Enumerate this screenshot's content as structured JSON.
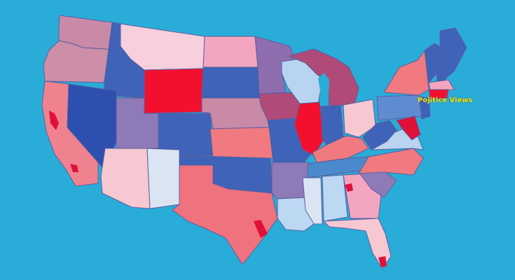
{
  "map": {
    "label": "Pojitice Views",
    "background_color": "#2aacd8",
    "border_color": "#5a5fa0",
    "regions": [
      {
        "name": "washington",
        "color": "#c98aa8"
      },
      {
        "name": "oregon",
        "color": "#cc8fa7"
      },
      {
        "name": "california",
        "color": "#f08290"
      },
      {
        "name": "idaho",
        "color": "#3e63b8"
      },
      {
        "name": "nevada",
        "color": "#2c4fb0"
      },
      {
        "name": "montana",
        "color": "#f7cfdd"
      },
      {
        "name": "wyoming",
        "color": "#f2102e"
      },
      {
        "name": "utah",
        "color": "#8f7ab8"
      },
      {
        "name": "arizona",
        "color": "#f7c8d2"
      },
      {
        "name": "colorado",
        "color": "#3e63b8"
      },
      {
        "name": "new-mexico",
        "color": "#dbe4f2"
      },
      {
        "name": "north-dakota",
        "color": "#f4a6c0"
      },
      {
        "name": "south-dakota",
        "color": "#3e63b8"
      },
      {
        "name": "nebraska",
        "color": "#c98aa8"
      },
      {
        "name": "kansas",
        "color": "#f07a80"
      },
      {
        "name": "oklahoma",
        "color": "#3e63b8"
      },
      {
        "name": "texas",
        "color": "#f0727e"
      },
      {
        "name": "minnesota",
        "color": "#8f6eb0"
      },
      {
        "name": "iowa",
        "color": "#b04a78"
      },
      {
        "name": "missouri",
        "color": "#3e63b8"
      },
      {
        "name": "arkansas",
        "color": "#8f7ab8"
      },
      {
        "name": "louisiana",
        "color": "#bcd8f2"
      },
      {
        "name": "wisconsin",
        "color": "#b8d4f0"
      },
      {
        "name": "illinois",
        "color": "#f2102e"
      },
      {
        "name": "michigan",
        "color": "#b04a78"
      },
      {
        "name": "indiana",
        "color": "#3e63b8"
      },
      {
        "name": "ohio",
        "color": "#f7c8d2"
      },
      {
        "name": "kentucky",
        "color": "#f07a80"
      },
      {
        "name": "tennessee",
        "color": "#4a8acc"
      },
      {
        "name": "mississippi",
        "color": "#dbe4f2"
      },
      {
        "name": "alabama",
        "color": "#bcd8f2"
      },
      {
        "name": "georgia",
        "color": "#f4a6c0"
      },
      {
        "name": "florida",
        "color": "#f7c8d2"
      },
      {
        "name": "south-carolina",
        "color": "#8f7ab8"
      },
      {
        "name": "north-carolina",
        "color": "#f07a80"
      },
      {
        "name": "virginia",
        "color": "#b8d4f0"
      },
      {
        "name": "west-virginia",
        "color": "#3e63b8"
      },
      {
        "name": "pennsylvania",
        "color": "#5f8cd0"
      },
      {
        "name": "new-york",
        "color": "#f07a80"
      },
      {
        "name": "maryland",
        "color": "#e0103a"
      },
      {
        "name": "new-jersey",
        "color": "#3e63b8"
      },
      {
        "name": "vermont",
        "color": "#3e63b8"
      },
      {
        "name": "new-hampshire",
        "color": "#3e63b8"
      },
      {
        "name": "maine",
        "color": "#3e63b8"
      },
      {
        "name": "massachusetts",
        "color": "#f4a6c0"
      },
      {
        "name": "connecticut",
        "color": "#f2102e"
      }
    ]
  }
}
